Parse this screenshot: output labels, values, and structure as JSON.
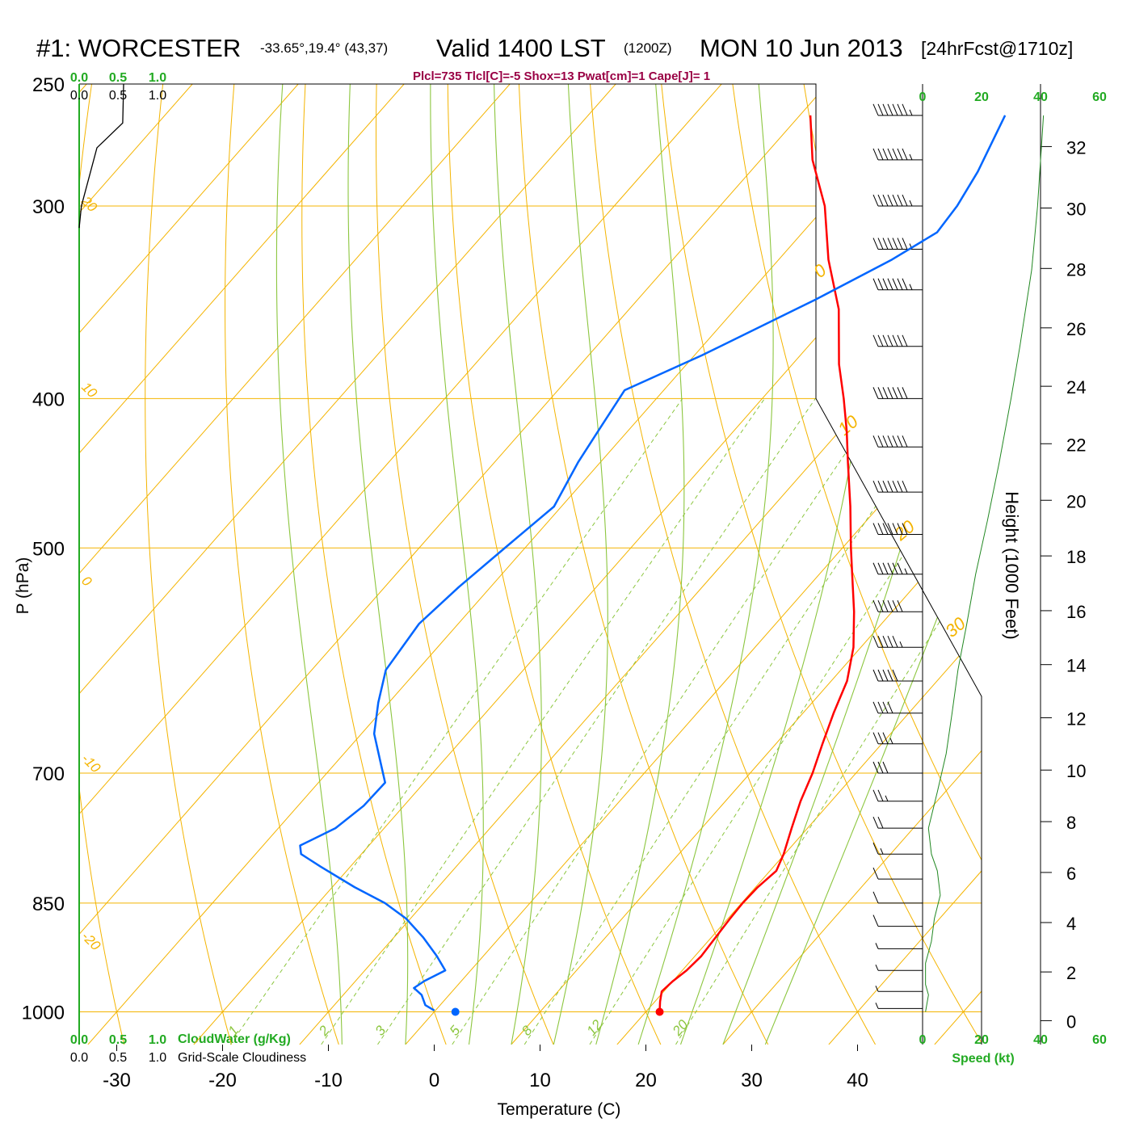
{
  "header": {
    "station": "#1: WORCESTER",
    "coords": "-33.65°,19.4° (43,37)",
    "valid": "Valid 1400 LST",
    "utc": "(1200Z)",
    "date": "MON 10 Jun 2013",
    "forecast": "[24hrFcst@1710z]",
    "indices": "Plcl=735 Tlcl[C]=-5 Shox=13 Pwat[cm]=1 Cape[J]= 1"
  },
  "colors": {
    "temperature": "#ff0000",
    "dewpoint": "#0066ff",
    "isotherms": "#f4b400",
    "dry_adiabats": "#f4b400",
    "moist_adiabats": "#8cc63f",
    "mixing_ratio": "#8cc63f",
    "cloud_scale": "#22aa22",
    "indices": "#990044",
    "height_profile": "#228822"
  },
  "chart_data": [
    {
      "type": "line",
      "name": "skew-T log-P sounding",
      "xlabel": "Temperature (C)",
      "ylabel": "P (hPa)",
      "x_ticks": [
        -30,
        -20,
        -10,
        0,
        10,
        20,
        30,
        40
      ],
      "pressure_ticks": [
        250,
        300,
        400,
        500,
        700,
        850,
        1000
      ],
      "pressure_range": [
        1050,
        250
      ],
      "temperature_range_at_1000": [
        -33.7,
        35.9
      ],
      "temperature_range_at_250": [
        -33.7,
        35.9
      ],
      "log_pressure_axis": true,
      "skewed": true,
      "surface_temperature_c": 21.3,
      "surface_dewpoint_c": 2.0,
      "series": [
        {
          "role": "temperature",
          "points": [
            [
              1000,
              21.3
            ],
            [
              985,
              20.5
            ],
            [
              970,
              19.8
            ],
            [
              955,
              20.0
            ],
            [
              940,
              20.4
            ],
            [
              920,
              20.6
            ],
            [
              895,
              20.4
            ],
            [
              870,
              20.2
            ],
            [
              850,
              20.1
            ],
            [
              830,
              20.2
            ],
            [
              810,
              20.6
            ],
            [
              790,
              19.9
            ],
            [
              760,
              18.5
            ],
            [
              730,
              17.1
            ],
            [
              700,
              15.9
            ],
            [
              670,
              14.4
            ],
            [
              640,
              12.9
            ],
            [
              610,
              11.5
            ],
            [
              580,
              9.3
            ],
            [
              550,
              6.4
            ],
            [
              520,
              3.1
            ],
            [
              500,
              0.8
            ],
            [
              470,
              -2.7
            ],
            [
              440,
              -6.6
            ],
            [
              420,
              -9.3
            ],
            [
              400,
              -12.3
            ],
            [
              380,
              -15.6
            ],
            [
              350,
              -20.2
            ],
            [
              325,
              -25.3
            ],
            [
              300,
              -30.1
            ],
            [
              280,
              -35.1
            ],
            [
              262,
              -39.0
            ]
          ]
        },
        {
          "role": "dewpoint",
          "points": [
            [
              998,
              -0.1
            ],
            [
              990,
              -1.4
            ],
            [
              975,
              -2.6
            ],
            [
              965,
              -3.9
            ],
            [
              955,
              -3.5
            ],
            [
              940,
              -2.4
            ],
            [
              920,
              -4.4
            ],
            [
              895,
              -7.2
            ],
            [
              870,
              -10.4
            ],
            [
              850,
              -13.7
            ],
            [
              830,
              -17.9
            ],
            [
              805,
              -22.8
            ],
            [
              790,
              -25.7
            ],
            [
              780,
              -26.5
            ],
            [
              760,
              -24.6
            ],
            [
              735,
              -23.8
            ],
            [
              710,
              -23.7
            ],
            [
              690,
              -25.7
            ],
            [
              660,
              -28.8
            ],
            [
              630,
              -31.0
            ],
            [
              600,
              -33.0
            ],
            [
              560,
              -33.7
            ],
            [
              530,
              -33.0
            ],
            [
              500,
              -31.9
            ],
            [
              470,
              -30.7
            ],
            [
              440,
              -32.1
            ],
            [
              420,
              -32.8
            ],
            [
              395,
              -33.7
            ],
            [
              375,
              -29.3
            ],
            [
              345,
              -23.2
            ],
            [
              325,
              -19.3
            ],
            [
              312,
              -17.3
            ],
            [
              300,
              -17.6
            ],
            [
              285,
              -18.5
            ],
            [
              262,
              -20.6
            ]
          ]
        }
      ],
      "dry_adiabats_theta_c": [
        -10,
        0,
        10,
        20,
        30
      ],
      "dry_adiabat_labels": [
        "-30",
        "-20",
        "-10",
        "0",
        "10",
        "20",
        "30"
      ],
      "mixing_ratio_g_kg": [
        "1",
        "2",
        "3",
        "5",
        "8",
        "12",
        "20"
      ],
      "moist_adiabat_start_temps_c": [
        -6,
        0,
        6,
        10,
        14,
        18,
        22,
        26,
        30,
        34
      ],
      "cloud_scales": {
        "ticks": [
          "0.0",
          "0.5",
          "1.0"
        ],
        "cloud_water_label": "CloudWater (g/Kg)",
        "cloudiness_label": "Grid-Scale Cloudiness"
      },
      "cloudiness_profile": [
        [
          250,
          1.0
        ],
        [
          265,
          0.98
        ],
        [
          275,
          0.4
        ],
        [
          300,
          0.05
        ],
        [
          310,
          0.0
        ]
      ]
    },
    {
      "type": "line",
      "name": "wind speed profile",
      "xlabel": "Speed (kt)",
      "x_ticks": [
        "0",
        "20",
        "40",
        "60"
      ],
      "speed_range": [
        0,
        60
      ],
      "points": [
        [
          1000,
          1
        ],
        [
          975,
          2
        ],
        [
          960,
          1
        ],
        [
          930,
          1
        ],
        [
          900,
          3
        ],
        [
          870,
          4
        ],
        [
          840,
          6
        ],
        [
          810,
          5
        ],
        [
          790,
          3
        ],
        [
          760,
          2
        ],
        [
          720,
          5
        ],
        [
          680,
          8
        ],
        [
          640,
          10
        ],
        [
          600,
          12
        ],
        [
          560,
          15
        ],
        [
          520,
          18
        ],
        [
          480,
          22
        ],
        [
          440,
          26
        ],
        [
          400,
          30
        ],
        [
          370,
          33
        ],
        [
          330,
          37
        ],
        [
          300,
          39
        ],
        [
          262,
          41
        ]
      ]
    },
    {
      "type": "line",
      "name": "height axis",
      "ylabel": "Height (1000 Feet)",
      "ticks": [
        "0",
        "2",
        "4",
        "6",
        "8",
        "10",
        "12",
        "14",
        "16",
        "18",
        "20",
        "22",
        "24",
        "26",
        "28",
        "30",
        "32"
      ]
    },
    {
      "type": "scatter",
      "name": "wind barbs",
      "points": [
        [
          262,
          75
        ],
        [
          280,
          75
        ],
        [
          300,
          75
        ],
        [
          320,
          75
        ],
        [
          340,
          75
        ],
        [
          370,
          70
        ],
        [
          400,
          70
        ],
        [
          430,
          70
        ],
        [
          460,
          70
        ],
        [
          490,
          70
        ],
        [
          520,
          65
        ],
        [
          550,
          60
        ],
        [
          580,
          55
        ],
        [
          610,
          50
        ],
        [
          640,
          40
        ],
        [
          670,
          35
        ],
        [
          700,
          30
        ],
        [
          730,
          25
        ],
        [
          760,
          20
        ],
        [
          790,
          15
        ],
        [
          820,
          10
        ],
        [
          850,
          10
        ],
        [
          880,
          10
        ],
        [
          910,
          5
        ],
        [
          940,
          5
        ],
        [
          970,
          5
        ],
        [
          995,
          5
        ]
      ]
    }
  ]
}
